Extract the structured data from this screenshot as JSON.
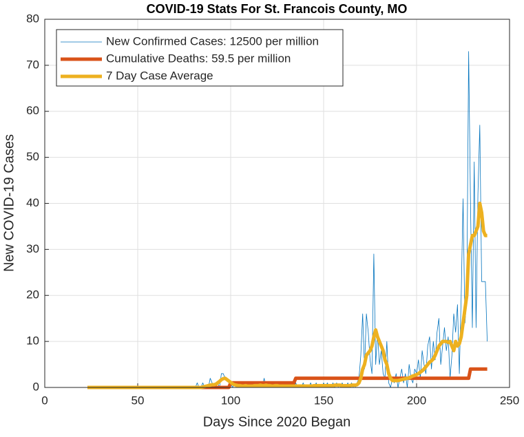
{
  "chart_data": {
    "type": "line",
    "title": "COVID-19 Stats For St. Francois County, MO",
    "xlabel": "Days Since 2020 Began",
    "ylabel": "New COVID-19 Cases",
    "xlim": [
      0,
      250
    ],
    "xticks": [
      0,
      50,
      100,
      150,
      200,
      250
    ],
    "ylim": [
      0,
      80
    ],
    "yticks": [
      0,
      10,
      20,
      30,
      40,
      50,
      60,
      70,
      80
    ],
    "grid": true,
    "legend": "upper left",
    "x": [
      23,
      24,
      25,
      26,
      27,
      28,
      29,
      30,
      31,
      32,
      33,
      34,
      35,
      36,
      37,
      38,
      39,
      40,
      41,
      42,
      43,
      44,
      45,
      46,
      47,
      48,
      49,
      50,
      51,
      52,
      53,
      54,
      55,
      56,
      57,
      58,
      59,
      60,
      61,
      62,
      63,
      64,
      65,
      66,
      67,
      68,
      69,
      70,
      71,
      72,
      73,
      74,
      75,
      76,
      77,
      78,
      79,
      80,
      81,
      82,
      83,
      84,
      85,
      86,
      87,
      88,
      89,
      90,
      91,
      92,
      93,
      94,
      95,
      96,
      97,
      98,
      99,
      100,
      101,
      102,
      103,
      104,
      105,
      106,
      107,
      108,
      109,
      110,
      111,
      112,
      113,
      114,
      115,
      116,
      117,
      118,
      119,
      120,
      121,
      122,
      123,
      124,
      125,
      126,
      127,
      128,
      129,
      130,
      131,
      132,
      133,
      134,
      135,
      136,
      137,
      138,
      139,
      140,
      141,
      142,
      143,
      144,
      145,
      146,
      147,
      148,
      149,
      150,
      151,
      152,
      153,
      154,
      155,
      156,
      157,
      158,
      159,
      160,
      161,
      162,
      163,
      164,
      165,
      166,
      167,
      168,
      169,
      170,
      171,
      172,
      173,
      174,
      175,
      176,
      177,
      178,
      179,
      180,
      181,
      182,
      183,
      184,
      185,
      186,
      187,
      188,
      189,
      190,
      191,
      192,
      193,
      194,
      195,
      196,
      197,
      198,
      199,
      200,
      201,
      202,
      203,
      204,
      205,
      206,
      207,
      208,
      209,
      210,
      211,
      212,
      213,
      214,
      215,
      216,
      217,
      218,
      219,
      220,
      221,
      222,
      223,
      224,
      225,
      226,
      227,
      228,
      229,
      230,
      231,
      232,
      233,
      234,
      235,
      236,
      237,
      238
    ],
    "series": [
      {
        "name": "New Confirmed Cases: 12500 per million",
        "color": "#0072bd",
        "width": 0.8,
        "values": [
          0,
          0,
          0,
          0,
          0,
          0,
          0,
          0,
          0,
          0,
          0,
          0,
          0,
          0,
          0,
          0,
          0,
          0,
          0,
          0,
          0,
          0,
          0,
          0,
          0,
          0,
          0,
          0,
          0,
          0,
          0,
          0,
          0,
          0,
          0,
          0,
          0,
          0,
          0,
          0,
          0,
          0,
          0,
          0,
          0,
          0,
          0,
          0,
          0,
          0,
          0,
          0,
          0,
          0,
          0,
          0,
          0,
          0,
          0,
          1,
          0,
          0,
          1,
          0,
          0,
          0,
          2,
          1,
          0,
          0,
          1,
          0,
          3,
          3,
          2,
          2,
          1,
          1,
          0,
          1,
          0,
          0,
          1,
          0,
          0,
          1,
          0,
          0,
          0,
          1,
          0,
          0,
          0,
          1,
          0,
          2,
          0,
          0,
          1,
          0,
          0,
          1,
          0,
          0,
          0,
          1,
          0,
          0,
          0,
          1,
          0,
          0,
          1,
          0,
          0,
          0,
          1,
          0,
          0,
          0,
          1,
          0,
          0,
          1,
          0,
          0,
          0,
          1,
          0,
          1,
          0,
          0,
          1,
          0,
          1,
          0,
          0,
          1,
          0,
          0,
          1,
          0,
          1,
          0,
          0,
          1,
          2,
          7,
          16,
          4,
          16,
          12,
          6,
          3,
          29,
          5,
          12,
          5,
          8,
          3,
          2,
          10,
          1,
          0,
          2,
          1,
          3,
          0,
          2,
          4,
          1,
          3,
          0,
          5,
          2,
          1,
          4,
          3,
          6,
          2,
          8,
          5,
          3,
          9,
          11,
          4,
          10,
          6,
          12,
          15,
          5,
          9,
          13,
          8,
          11,
          2,
          7,
          16,
          12,
          18,
          3,
          20,
          41,
          14,
          19,
          73,
          40,
          13,
          49,
          13,
          42,
          57,
          23,
          23,
          23,
          10
        ]
      },
      {
        "name": "Cumulative Deaths: 59.5 per million",
        "color": "#d95319",
        "width": 5,
        "values": [
          0,
          0,
          0,
          0,
          0,
          0,
          0,
          0,
          0,
          0,
          0,
          0,
          0,
          0,
          0,
          0,
          0,
          0,
          0,
          0,
          0,
          0,
          0,
          0,
          0,
          0,
          0,
          0,
          0,
          0,
          0,
          0,
          0,
          0,
          0,
          0,
          0,
          0,
          0,
          0,
          0,
          0,
          0,
          0,
          0,
          0,
          0,
          0,
          0,
          0,
          0,
          0,
          0,
          0,
          0,
          0,
          0,
          0,
          0,
          0,
          0,
          0,
          0,
          0,
          0,
          0,
          0,
          0,
          0,
          0,
          0,
          0,
          0,
          0,
          0,
          0,
          0,
          1,
          1,
          1,
          1,
          1,
          1,
          1,
          1,
          1,
          1,
          1,
          1,
          1,
          1,
          1,
          1,
          1,
          1,
          1,
          1,
          1,
          1,
          1,
          1,
          1,
          1,
          1,
          1,
          1,
          1,
          1,
          1,
          1,
          1,
          1,
          2,
          2,
          2,
          2,
          2,
          2,
          2,
          2,
          2,
          2,
          2,
          2,
          2,
          2,
          2,
          2,
          2,
          2,
          2,
          2,
          2,
          2,
          2,
          2,
          2,
          2,
          2,
          2,
          2,
          2,
          2,
          2,
          2,
          2,
          2,
          2,
          2,
          2,
          2,
          2,
          2,
          2,
          2,
          2,
          2,
          2,
          2,
          2,
          2,
          2,
          2,
          2,
          2,
          2,
          2,
          2,
          2,
          2,
          2,
          2,
          2,
          2,
          2,
          2,
          2,
          2,
          2,
          2,
          2,
          2,
          2,
          2,
          2,
          2,
          2,
          2,
          2,
          2,
          2,
          2,
          2,
          2,
          2,
          2,
          2,
          2,
          2,
          2,
          2,
          2,
          2,
          2,
          2,
          2,
          4,
          4,
          4,
          4,
          4,
          4,
          4,
          4,
          4,
          4
        ]
      },
      {
        "name": "7 Day Case Average",
        "color": "#edb120",
        "width": 5,
        "values": [
          0,
          0,
          0,
          0,
          0,
          0,
          0,
          0,
          0,
          0,
          0,
          0,
          0,
          0,
          0,
          0,
          0,
          0,
          0,
          0,
          0,
          0,
          0,
          0,
          0,
          0,
          0,
          0,
          0,
          0,
          0,
          0,
          0,
          0,
          0,
          0,
          0,
          0,
          0,
          0,
          0,
          0,
          0,
          0,
          0,
          0,
          0,
          0,
          0,
          0,
          0,
          0,
          0,
          0,
          0,
          0,
          0,
          0,
          0,
          0,
          0,
          0,
          0.1,
          0.2,
          0.3,
          0.4,
          0.5,
          0.6,
          0.6,
          0.7,
          1,
          1.3,
          1.7,
          1.9,
          2,
          1.7,
          1.4,
          1.1,
          0.8,
          0.6,
          0.5,
          0.4,
          0.4,
          0.3,
          0.3,
          0.4,
          0.3,
          0.3,
          0.3,
          0.3,
          0.4,
          0.4,
          0.4,
          0.5,
          0.4,
          0.4,
          0.5,
          0.4,
          0.4,
          0.3,
          0.3,
          0.4,
          0.4,
          0.3,
          0.3,
          0.3,
          0.3,
          0.3,
          0.3,
          0.3,
          0.3,
          0.3,
          0.3,
          0.3,
          0.3,
          0.3,
          0.3,
          0.3,
          0.3,
          0.3,
          0.3,
          0.3,
          0.4,
          0.4,
          0.4,
          0.4,
          0.4,
          0.4,
          0.4,
          0.4,
          0.4,
          0.4,
          0.4,
          0.5,
          0.5,
          0.5,
          0.5,
          0.4,
          0.4,
          0.4,
          0.4,
          0.4,
          0.5,
          0.5,
          0.5,
          0.6,
          1,
          2,
          4,
          5,
          7,
          7.5,
          8,
          9,
          11,
          12.5,
          11,
          10,
          9,
          8,
          6,
          5,
          3,
          2,
          1.5,
          1.5,
          1.5,
          1.5,
          1.6,
          1.7,
          1.8,
          1.9,
          2,
          2.1,
          2.3,
          2.5,
          2.6,
          2.8,
          3,
          3.3,
          3.6,
          4,
          4.5,
          5,
          5.5,
          5.8,
          6.2,
          7,
          8,
          9,
          9.5,
          10,
          10,
          10,
          9.8,
          10,
          9,
          8,
          10,
          9,
          9.5,
          11,
          14,
          17,
          20,
          29,
          31,
          33,
          33,
          34,
          35,
          40,
          38,
          34,
          33,
          33
        ]
      }
    ]
  }
}
